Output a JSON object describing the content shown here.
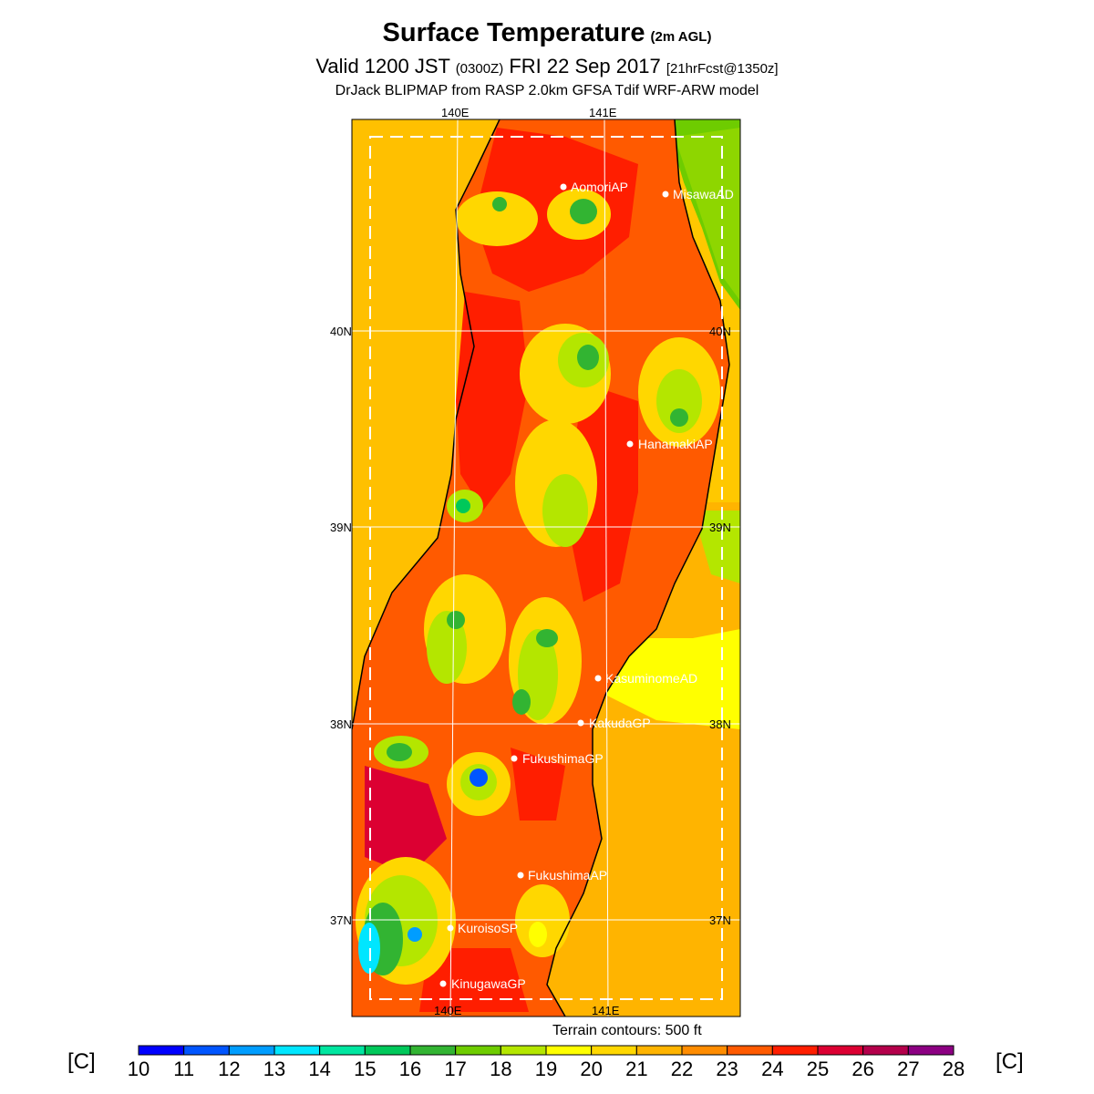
{
  "header": {
    "title": "Surface Temperature",
    "title_sub": "(2m AGL)",
    "valid_prefix": "Valid 1200 JST",
    "valid_utc": "(0300Z)",
    "valid_date": "FRI 22 Sep 2017",
    "forecast_info": "[21hrFcst@1350z]",
    "model_line": "DrJack BLIPMAP from RASP 2.0km GFSA Tdif WRF-ARW model"
  },
  "map": {
    "lon_labels": [
      "140E",
      "141E"
    ],
    "lat_labels": [
      "40N",
      "39N",
      "38N",
      "37N"
    ],
    "stations": [
      {
        "name": "AomoriAP"
      },
      {
        "name": "MisawaAD"
      },
      {
        "name": "HanamakiAP"
      },
      {
        "name": "KasuminomeAD"
      },
      {
        "name": "KakudaGP"
      },
      {
        "name": "FukushimaGP"
      },
      {
        "name": "FukushimaAP"
      },
      {
        "name": "KuroisoSP"
      },
      {
        "name": "KinugawaGP"
      }
    ],
    "terrain_note": "Terrain contours: 500 ft"
  },
  "colorbar": {
    "unit": "[C]",
    "ticks": [
      "10",
      "11",
      "12",
      "13",
      "14",
      "15",
      "16",
      "17",
      "18",
      "19",
      "20",
      "21",
      "22",
      "23",
      "24",
      "25",
      "26",
      "27",
      "28"
    ],
    "colors": [
      "#0000ff",
      "#0055ff",
      "#009dff",
      "#00e6ff",
      "#00e6a0",
      "#00c85a",
      "#32b432",
      "#6ecc00",
      "#b4e600",
      "#ffff00",
      "#ffd700",
      "#ffb400",
      "#ff8c00",
      "#ff5a00",
      "#ff1e00",
      "#dc0032",
      "#b4004b",
      "#8c0082"
    ]
  }
}
